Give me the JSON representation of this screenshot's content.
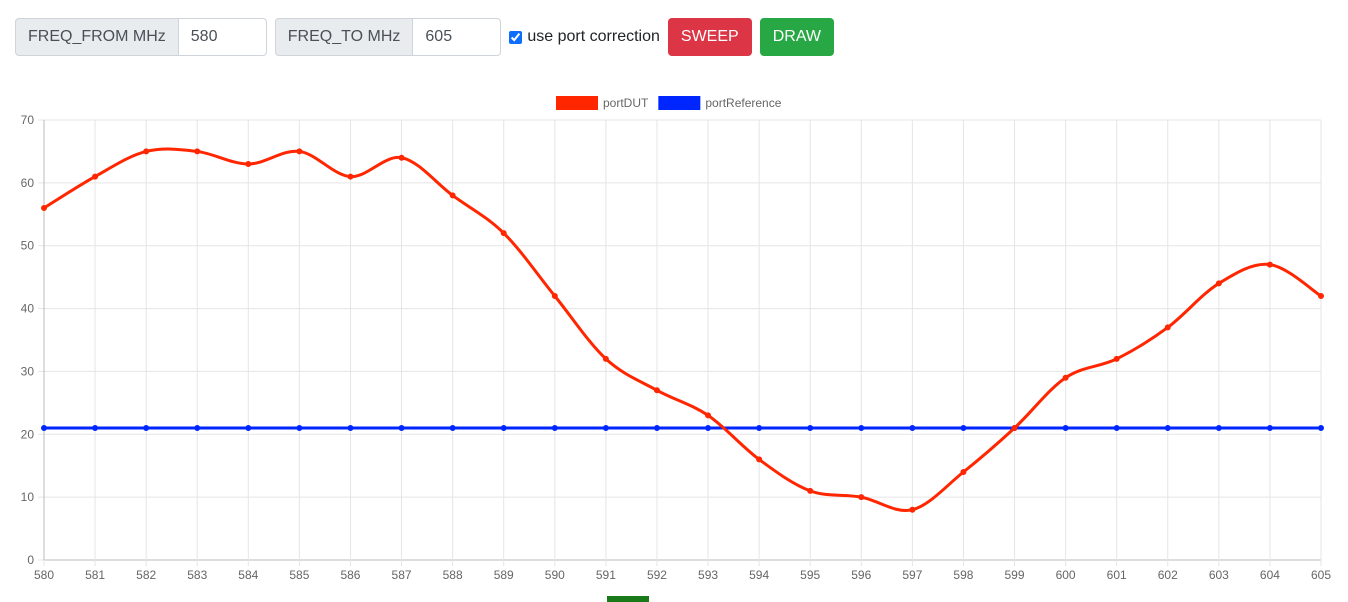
{
  "toolbar": {
    "freq_from_label": "FREQ_FROM MHz",
    "freq_from_value": "580",
    "freq_to_label": "FREQ_TO MHz",
    "freq_to_value": "605",
    "port_correction_label": "use port correction",
    "port_correction_checked": true,
    "sweep_label": "SWEEP",
    "draw_label": "DRAW"
  },
  "colors": {
    "sweep": "#dc3545",
    "draw": "#28a745",
    "portDUT": "#ff2600",
    "portReference": "#0026ff",
    "third_series": "#1a7a1a"
  },
  "chart_data": {
    "type": "line",
    "x": [
      580,
      581,
      582,
      583,
      584,
      585,
      586,
      587,
      588,
      589,
      590,
      591,
      592,
      593,
      594,
      595,
      596,
      597,
      598,
      599,
      600,
      601,
      602,
      603,
      604,
      605
    ],
    "series": [
      {
        "name": "portDUT",
        "color": "#ff2600",
        "values": [
          56,
          61,
          65,
          65,
          63,
          65,
          61,
          64,
          58,
          52,
          42,
          32,
          27,
          23,
          16,
          11,
          10,
          8,
          14,
          21,
          29,
          32,
          37,
          44,
          47,
          42
        ]
      },
      {
        "name": "portReference",
        "color": "#0026ff",
        "values": [
          21,
          21,
          21,
          21,
          21,
          21,
          21,
          21,
          21,
          21,
          21,
          21,
          21,
          21,
          21,
          21,
          21,
          21,
          21,
          21,
          21,
          21,
          21,
          21,
          21,
          21
        ]
      }
    ],
    "ylim": [
      0,
      70
    ],
    "yticks": [
      0,
      10,
      20,
      30,
      40,
      50,
      60,
      70
    ],
    "xlim": [
      580,
      605
    ],
    "grid": true,
    "legend": "top-center"
  }
}
